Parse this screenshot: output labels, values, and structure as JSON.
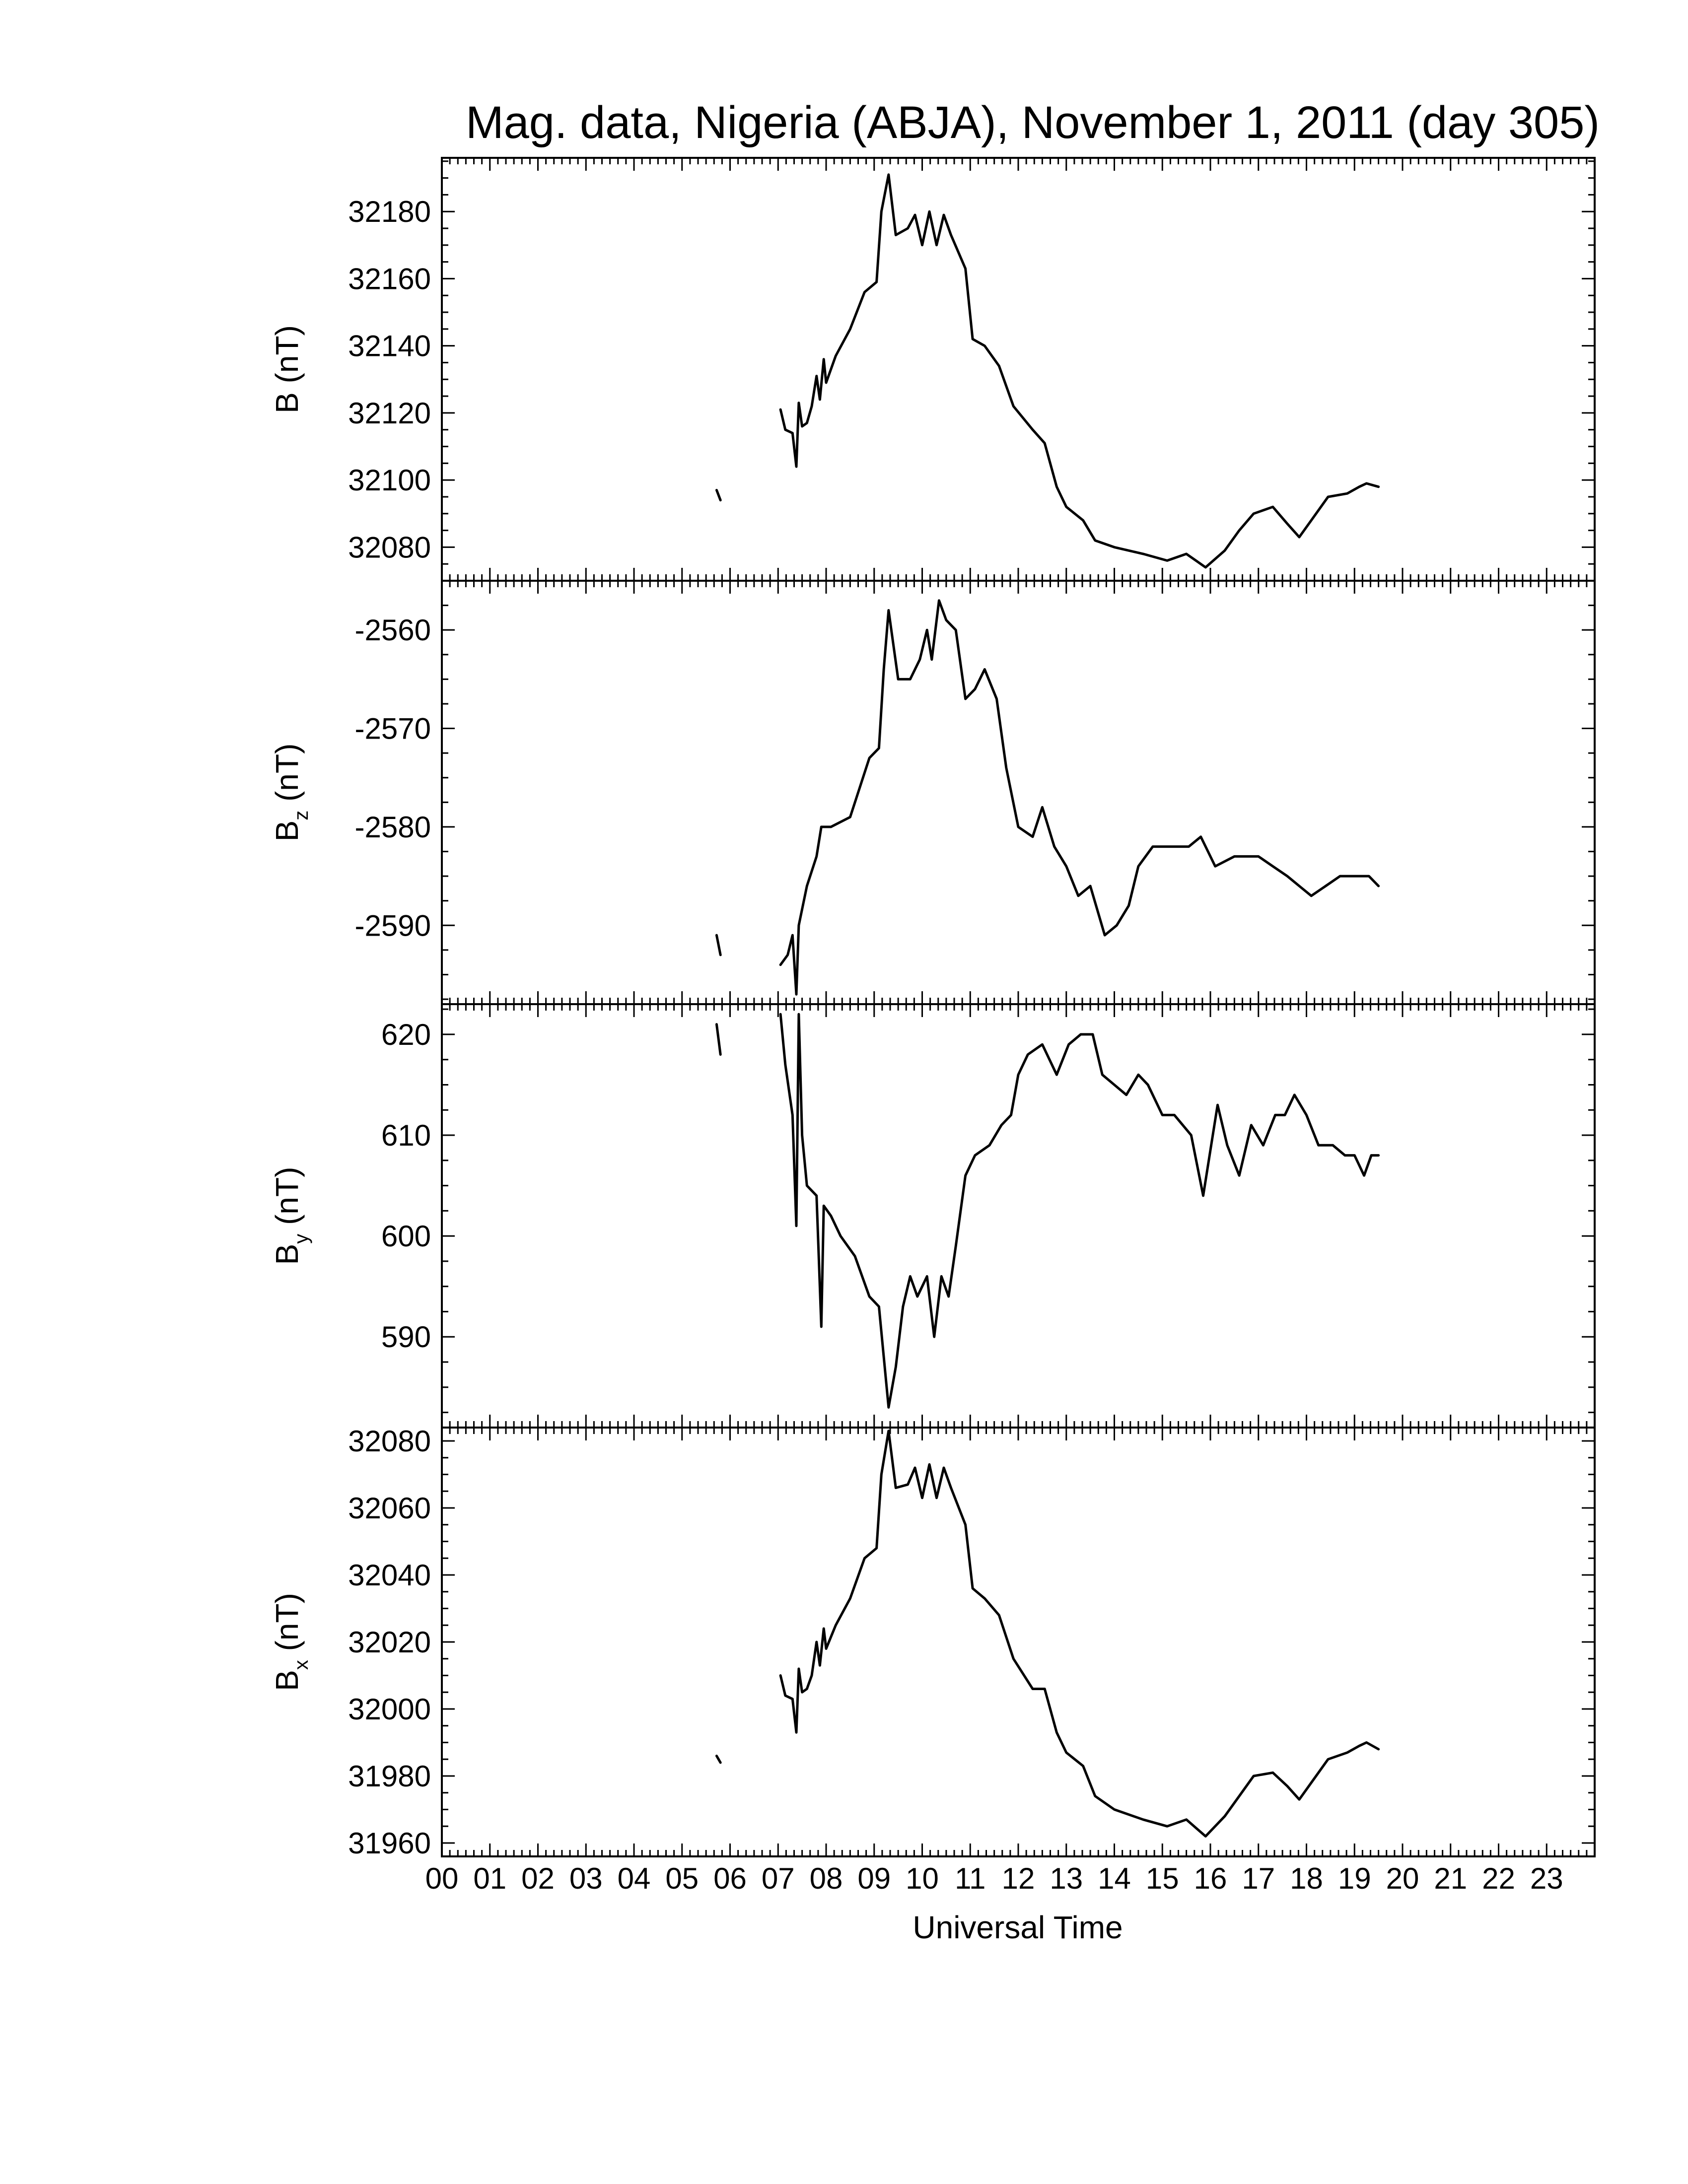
{
  "chart_data": {
    "title": "Mag. data, Nigeria (ABJA), November 1, 2011 (day 305)",
    "type": "line",
    "xlabel": "Universal Time",
    "xlim": [
      0,
      24
    ],
    "x_tick_labels": [
      "00",
      "01",
      "02",
      "03",
      "04",
      "05",
      "06",
      "07",
      "08",
      "09",
      "10",
      "11",
      "12",
      "13",
      "14",
      "15",
      "16",
      "17",
      "18",
      "19",
      "20",
      "21",
      "22",
      "23"
    ],
    "panels": [
      {
        "id": "B",
        "ylabel": "B (nT)",
        "ylabel_main": "B",
        "ylabel_sub": "",
        "ylabel_unit": " (nT)",
        "ylim": [
          32070,
          32196
        ],
        "yticks": [
          32080,
          32100,
          32120,
          32140,
          32160,
          32180
        ],
        "segments": [
          [
            [
              5.72,
              32097
            ],
            [
              5.8,
              32094
            ]
          ],
          [
            [
              7.05,
              32121
            ],
            [
              7.15,
              32115
            ],
            [
              7.3,
              32114
            ],
            [
              7.38,
              32104
            ],
            [
              7.43,
              32123
            ],
            [
              7.5,
              32116
            ],
            [
              7.6,
              32117
            ],
            [
              7.7,
              32122
            ],
            [
              7.8,
              32131
            ],
            [
              7.87,
              32124
            ],
            [
              7.95,
              32136
            ],
            [
              8.0,
              32129
            ],
            [
              8.2,
              32137
            ],
            [
              8.5,
              32145
            ],
            [
              8.8,
              32156
            ],
            [
              9.05,
              32159
            ],
            [
              9.15,
              32180
            ],
            [
              9.3,
              32191
            ],
            [
              9.45,
              32173
            ],
            [
              9.7,
              32175
            ],
            [
              9.85,
              32179
            ],
            [
              10.0,
              32170
            ],
            [
              10.15,
              32180
            ],
            [
              10.3,
              32170
            ],
            [
              10.45,
              32179
            ],
            [
              10.6,
              32173
            ],
            [
              10.9,
              32163
            ],
            [
              11.05,
              32142
            ],
            [
              11.3,
              32140
            ],
            [
              11.6,
              32134
            ],
            [
              11.9,
              32122
            ],
            [
              12.3,
              32115
            ],
            [
              12.55,
              32111
            ],
            [
              12.8,
              32098
            ],
            [
              13.0,
              32092
            ],
            [
              13.35,
              32088
            ],
            [
              13.6,
              32082
            ],
            [
              14.0,
              32080
            ],
            [
              14.6,
              32078
            ],
            [
              15.1,
              32076
            ],
            [
              15.5,
              32078
            ],
            [
              15.9,
              32074
            ],
            [
              16.3,
              32079
            ],
            [
              16.6,
              32085
            ],
            [
              16.9,
              32090
            ],
            [
              17.3,
              32092
            ],
            [
              17.6,
              32087
            ],
            [
              17.85,
              32083
            ],
            [
              18.1,
              32088
            ],
            [
              18.45,
              32095
            ],
            [
              18.85,
              32096
            ],
            [
              19.1,
              32098
            ],
            [
              19.25,
              32099
            ],
            [
              19.5,
              32098
            ]
          ]
        ]
      },
      {
        "id": "Bz",
        "ylabel": "Bz (nT)",
        "ylabel_main": "B",
        "ylabel_sub": "z",
        "ylabel_unit": " (nT)",
        "ylim": [
          -2598,
          -2555
        ],
        "yticks": [
          -2590,
          -2580,
          -2570,
          -2560
        ],
        "segments": [
          [
            [
              5.72,
              -2591
            ],
            [
              5.8,
              -2593
            ]
          ],
          [
            [
              7.05,
              -2594
            ],
            [
              7.2,
              -2593
            ],
            [
              7.3,
              -2591
            ],
            [
              7.38,
              -2597
            ],
            [
              7.43,
              -2590
            ],
            [
              7.6,
              -2586
            ],
            [
              7.8,
              -2583
            ],
            [
              7.9,
              -2580
            ],
            [
              8.1,
              -2580
            ],
            [
              8.5,
              -2579
            ],
            [
              8.9,
              -2573
            ],
            [
              9.1,
              -2572
            ],
            [
              9.2,
              -2564
            ],
            [
              9.3,
              -2558
            ],
            [
              9.5,
              -2565
            ],
            [
              9.75,
              -2565
            ],
            [
              9.95,
              -2563
            ],
            [
              10.1,
              -2560
            ],
            [
              10.2,
              -2563
            ],
            [
              10.35,
              -2557
            ],
            [
              10.5,
              -2559
            ],
            [
              10.7,
              -2560
            ],
            [
              10.9,
              -2567
            ],
            [
              11.1,
              -2566
            ],
            [
              11.3,
              -2564
            ],
            [
              11.55,
              -2567
            ],
            [
              11.75,
              -2574
            ],
            [
              12.0,
              -2580
            ],
            [
              12.3,
              -2581
            ],
            [
              12.5,
              -2578
            ],
            [
              12.75,
              -2582
            ],
            [
              13.0,
              -2584
            ],
            [
              13.25,
              -2587
            ],
            [
              13.5,
              -2586
            ],
            [
              13.8,
              -2591
            ],
            [
              14.05,
              -2590
            ],
            [
              14.3,
              -2588
            ],
            [
              14.5,
              -2584
            ],
            [
              14.8,
              -2582
            ],
            [
              15.3,
              -2582
            ],
            [
              15.55,
              -2582
            ],
            [
              15.8,
              -2581
            ],
            [
              16.1,
              -2584
            ],
            [
              16.5,
              -2583
            ],
            [
              16.8,
              -2583
            ],
            [
              17.0,
              -2583
            ],
            [
              17.3,
              -2584
            ],
            [
              17.6,
              -2585
            ],
            [
              17.85,
              -2586
            ],
            [
              18.1,
              -2587
            ],
            [
              18.4,
              -2586
            ],
            [
              18.7,
              -2585
            ],
            [
              19.0,
              -2585
            ],
            [
              19.3,
              -2585
            ],
            [
              19.5,
              -2586
            ]
          ]
        ]
      },
      {
        "id": "By",
        "ylabel": "By (nT)",
        "ylabel_main": "B",
        "ylabel_sub": "y",
        "ylabel_unit": " (nT)",
        "ylim": [
          581,
          623
        ],
        "yticks": [
          590,
          600,
          610,
          620
        ],
        "segments": [
          [
            [
              5.72,
              621
            ],
            [
              5.8,
              618
            ]
          ],
          [
            [
              7.05,
              622
            ],
            [
              7.15,
              617
            ],
            [
              7.3,
              612
            ],
            [
              7.38,
              601
            ],
            [
              7.43,
              622
            ],
            [
              7.5,
              610
            ],
            [
              7.6,
              605
            ],
            [
              7.8,
              604
            ],
            [
              7.9,
              591
            ],
            [
              7.95,
              603
            ],
            [
              8.1,
              602
            ],
            [
              8.3,
              600
            ],
            [
              8.6,
              598
            ],
            [
              8.9,
              594
            ],
            [
              9.1,
              593
            ],
            [
              9.3,
              583
            ],
            [
              9.45,
              587
            ],
            [
              9.6,
              593
            ],
            [
              9.75,
              596
            ],
            [
              9.9,
              594
            ],
            [
              10.1,
              596
            ],
            [
              10.25,
              590
            ],
            [
              10.4,
              596
            ],
            [
              10.55,
              594
            ],
            [
              10.7,
              599
            ],
            [
              10.9,
              606
            ],
            [
              11.1,
              608
            ],
            [
              11.4,
              609
            ],
            [
              11.65,
              611
            ],
            [
              11.85,
              612
            ],
            [
              12.0,
              616
            ],
            [
              12.2,
              618
            ],
            [
              12.5,
              619
            ],
            [
              12.8,
              616
            ],
            [
              13.05,
              619
            ],
            [
              13.3,
              620
            ],
            [
              13.55,
              620
            ],
            [
              13.75,
              616
            ],
            [
              14.0,
              615
            ],
            [
              14.25,
              614
            ],
            [
              14.5,
              616
            ],
            [
              14.7,
              615
            ],
            [
              15.0,
              612
            ],
            [
              15.25,
              612
            ],
            [
              15.6,
              610
            ],
            [
              15.85,
              604
            ],
            [
              16.05,
              610
            ],
            [
              16.15,
              613
            ],
            [
              16.35,
              609
            ],
            [
              16.6,
              606
            ],
            [
              16.85,
              611
            ],
            [
              17.1,
              609
            ],
            [
              17.35,
              612
            ],
            [
              17.55,
              612
            ],
            [
              17.75,
              614
            ],
            [
              18.0,
              612
            ],
            [
              18.25,
              609
            ],
            [
              18.55,
              609
            ],
            [
              18.8,
              608
            ],
            [
              19.0,
              608
            ],
            [
              19.2,
              606
            ],
            [
              19.35,
              608
            ],
            [
              19.5,
              608
            ]
          ]
        ]
      },
      {
        "id": "Bx",
        "ylabel": "Bx (nT)",
        "ylabel_main": "B",
        "ylabel_sub": "x",
        "ylabel_unit": " (nT)",
        "ylim": [
          31956,
          32084
        ],
        "yticks": [
          31960,
          31980,
          32000,
          32020,
          32040,
          32060,
          32080
        ],
        "segments": [
          [
            [
              5.72,
              31986
            ],
            [
              5.8,
              31984
            ]
          ],
          [
            [
              7.05,
              32010
            ],
            [
              7.15,
              32004
            ],
            [
              7.3,
              32003
            ],
            [
              7.38,
              31993
            ],
            [
              7.43,
              32012
            ],
            [
              7.5,
              32005
            ],
            [
              7.6,
              32006
            ],
            [
              7.7,
              32010
            ],
            [
              7.8,
              32020
            ],
            [
              7.87,
              32013
            ],
            [
              7.95,
              32024
            ],
            [
              8.0,
              32018
            ],
            [
              8.2,
              32025
            ],
            [
              8.5,
              32033
            ],
            [
              8.8,
              32045
            ],
            [
              9.05,
              32048
            ],
            [
              9.15,
              32070
            ],
            [
              9.3,
              32083
            ],
            [
              9.45,
              32066
            ],
            [
              9.7,
              32067
            ],
            [
              9.85,
              32072
            ],
            [
              10.0,
              32063
            ],
            [
              10.15,
              32073
            ],
            [
              10.3,
              32063
            ],
            [
              10.45,
              32072
            ],
            [
              10.6,
              32066
            ],
            [
              10.9,
              32055
            ],
            [
              11.05,
              32036
            ],
            [
              11.3,
              32033
            ],
            [
              11.6,
              32028
            ],
            [
              11.9,
              32015
            ],
            [
              12.3,
              32006
            ],
            [
              12.55,
              32006
            ],
            [
              12.8,
              31993
            ],
            [
              13.0,
              31987
            ],
            [
              13.35,
              31983
            ],
            [
              13.6,
              31974
            ],
            [
              14.0,
              31970
            ],
            [
              14.6,
              31967
            ],
            [
              15.1,
              31965
            ],
            [
              15.5,
              31967
            ],
            [
              15.9,
              31962
            ],
            [
              16.3,
              31968
            ],
            [
              16.6,
              31974
            ],
            [
              16.9,
              31980
            ],
            [
              17.3,
              31981
            ],
            [
              17.6,
              31977
            ],
            [
              17.85,
              31973
            ],
            [
              18.1,
              31978
            ],
            [
              18.45,
              31985
            ],
            [
              18.85,
              31987
            ],
            [
              19.1,
              31989
            ],
            [
              19.25,
              31990
            ],
            [
              19.5,
              31988
            ]
          ]
        ]
      }
    ]
  }
}
